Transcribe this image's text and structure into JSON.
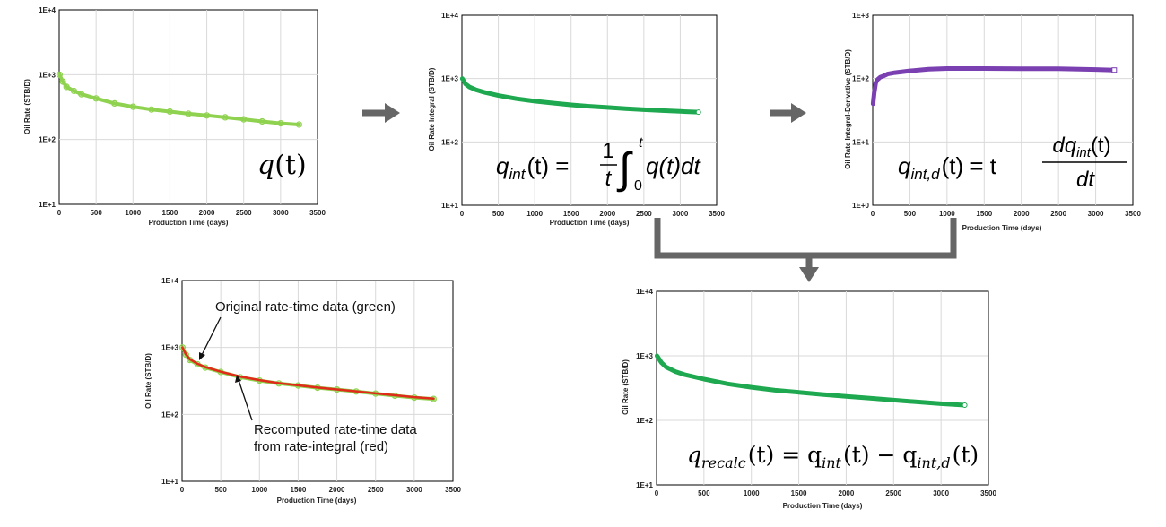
{
  "chart_data": [
    {
      "type": "scatter",
      "id": "chart_q",
      "title": "",
      "xlabel": "Production Time (days)",
      "ylabel": "Oil Rate (STB/D)",
      "xlim": [
        0,
        3500
      ],
      "xticks": [
        "0",
        "500",
        "1000",
        "1500",
        "2000",
        "2500",
        "3000",
        "3500"
      ],
      "yscale": "log",
      "ylim": [
        10,
        10000
      ],
      "yticks": [
        "1E+1",
        "1E+2",
        "1E+3",
        "1E+4"
      ],
      "grid": true,
      "series": [
        {
          "name": "q(t)",
          "color": "#8fd24f",
          "marker": "circle",
          "x": [
            5,
            50,
            100,
            200,
            300,
            500,
            750,
            1000,
            1250,
            1500,
            1750,
            2000,
            2250,
            2500,
            2750,
            3000,
            3250
          ],
          "y": [
            1000,
            780,
            650,
            560,
            500,
            430,
            360,
            320,
            290,
            270,
            250,
            235,
            220,
            205,
            190,
            178,
            170
          ]
        }
      ],
      "annotation": {
        "base": "q",
        "suffix": "(t)"
      }
    },
    {
      "type": "line",
      "id": "chart_qint",
      "title": "",
      "xlabel": "Production Time (days)",
      "ylabel": "Oil Rate Integral (STB/D)",
      "xlim": [
        0,
        3500
      ],
      "xticks": [
        "0",
        "500",
        "1000",
        "1500",
        "2000",
        "2500",
        "3000",
        "3500"
      ],
      "yscale": "log",
      "ylim": [
        10,
        10000
      ],
      "yticks": [
        "1E+1",
        "1E+2",
        "1E+3",
        "1E+4"
      ],
      "grid": true,
      "series": [
        {
          "name": "q_int(t)",
          "color": "#1ea84f",
          "x": [
            5,
            50,
            100,
            200,
            300,
            500,
            750,
            1000,
            1250,
            1500,
            1750,
            2000,
            2250,
            2500,
            2750,
            3000,
            3250
          ],
          "y": [
            1000,
            820,
            740,
            660,
            610,
            540,
            480,
            440,
            410,
            385,
            365,
            350,
            335,
            322,
            312,
            303,
            295
          ]
        }
      ],
      "annotation": {
        "lhs": "q",
        "lhs_sub": "int",
        "lhs_arg": "(t) =",
        "num": "1",
        "den": "t",
        "lower": "0",
        "upper": "t",
        "integrand": "q(t)dt"
      }
    },
    {
      "type": "line",
      "id": "chart_qintd",
      "title": "",
      "xlabel": "Production Time (days)",
      "ylabel": "Oil Rate Integral-Derivative (STB/D)",
      "xlim": [
        0,
        3500
      ],
      "xticks": [
        "0",
        "500",
        "1000",
        "1500",
        "2000",
        "2500",
        "3000",
        "3500"
      ],
      "yscale": "log",
      "ylim": [
        1,
        1000
      ],
      "yticks": [
        "1E+0",
        "1E+1",
        "1E+2",
        "1E+3"
      ],
      "grid": true,
      "series": [
        {
          "name": "q_int,d(t)",
          "color": "#7a3fb0",
          "x": [
            5,
            20,
            40,
            60,
            80,
            100,
            150,
            200,
            300,
            500,
            750,
            1000,
            1500,
            2000,
            2500,
            3000,
            3250
          ],
          "y": [
            40,
            60,
            85,
            95,
            100,
            105,
            110,
            118,
            124,
            132,
            140,
            144,
            144,
            143,
            143,
            139,
            136
          ]
        }
      ],
      "annotation": {
        "lhs": "q",
        "lhs_sub": "int,d",
        "lhs_arg": "(t) = t",
        "num": "dq",
        "num_sub": "int",
        "num_arg": "(t)",
        "den": "dt"
      }
    },
    {
      "type": "scatter",
      "id": "chart_compare",
      "title": "",
      "xlabel": "Production Time (days)",
      "ylabel": "Oil Rate (STB/D)",
      "xlim": [
        0,
        3500
      ],
      "xticks": [
        "0",
        "500",
        "1000",
        "1500",
        "2000",
        "2500",
        "3000",
        "3500"
      ],
      "yscale": "log",
      "ylim": [
        10,
        10000
      ],
      "yticks": [
        "1E+1",
        "1E+2",
        "1E+3",
        "1E+4"
      ],
      "grid": true,
      "series": [
        {
          "name": "Original rate-time data (green)",
          "color": "#8fd24f",
          "marker": "circle",
          "x": [
            5,
            50,
            100,
            200,
            300,
            500,
            750,
            1000,
            1250,
            1500,
            1750,
            2000,
            2250,
            2500,
            2750,
            3000,
            3250
          ],
          "y": [
            1000,
            780,
            650,
            560,
            500,
            430,
            360,
            320,
            290,
            270,
            250,
            235,
            220,
            205,
            190,
            178,
            170
          ]
        },
        {
          "name": "Recomputed rate-time data from rate-integral (red)",
          "color": "#e02a1a",
          "marker": "none",
          "x": [
            5,
            50,
            100,
            200,
            300,
            500,
            750,
            1000,
            1250,
            1500,
            1750,
            2000,
            2250,
            2500,
            2750,
            3000,
            3250
          ],
          "y": [
            1000,
            790,
            670,
            570,
            510,
            435,
            368,
            325,
            293,
            272,
            252,
            236,
            221,
            206,
            193,
            181,
            172
          ]
        }
      ],
      "annotations": [
        "Original rate-time data (green)",
        "Recomputed rate-time data",
        "from rate-integral (red)"
      ]
    },
    {
      "type": "line",
      "id": "chart_recalc",
      "title": "",
      "xlabel": "Production Time (days)",
      "ylabel": "Oil Rate (STB/D)",
      "xlim": [
        0,
        3500
      ],
      "xticks": [
        "0",
        "500",
        "1000",
        "1500",
        "2000",
        "2500",
        "3000",
        "3500"
      ],
      "yscale": "log",
      "ylim": [
        10,
        10000
      ],
      "yticks": [
        "1E+1",
        "1E+2",
        "1E+3",
        "1E+4"
      ],
      "grid": true,
      "series": [
        {
          "name": "q_recalc(t)",
          "color": "#1ea84f",
          "x": [
            5,
            50,
            100,
            200,
            300,
            500,
            750,
            1000,
            1250,
            1500,
            1750,
            2000,
            2250,
            2500,
            2750,
            3000,
            3250
          ],
          "y": [
            1000,
            790,
            670,
            570,
            510,
            435,
            368,
            325,
            293,
            272,
            252,
            236,
            221,
            206,
            193,
            181,
            172
          ]
        }
      ],
      "annotation": {
        "lhs": "q",
        "lhs_sub": "recalc",
        "mid": "(t) = q",
        "mid_sub": "int",
        "mid2": "(t) − q",
        "mid2_sub": "int,d",
        "end": "(t)"
      }
    }
  ],
  "colors": {
    "arrow": "#666666",
    "axis": "#000000",
    "grid": "#d9d9d9"
  }
}
